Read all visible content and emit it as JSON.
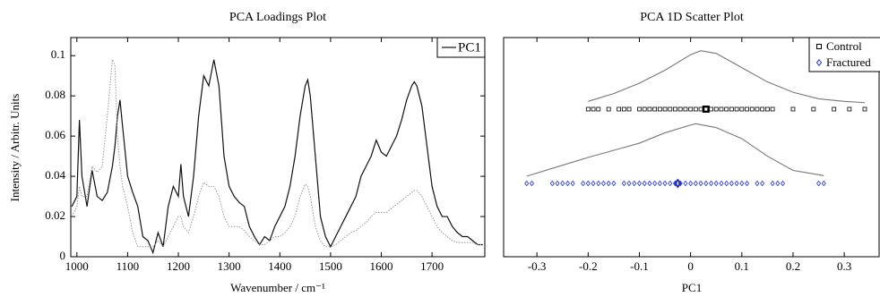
{
  "chart_data": [
    {
      "type": "line",
      "title": "PCA Loadings Plot",
      "xlabel": "Wavenumber / cm⁻¹",
      "ylabel": "Intensity / Arbitr. Units",
      "x": [
        990,
        1000,
        1005,
        1010,
        1020,
        1030,
        1040,
        1050,
        1060,
        1070,
        1075,
        1080,
        1085,
        1090,
        1100,
        1110,
        1120,
        1130,
        1140,
        1150,
        1160,
        1170,
        1180,
        1190,
        1200,
        1205,
        1210,
        1220,
        1230,
        1240,
        1250,
        1260,
        1270,
        1280,
        1290,
        1300,
        1310,
        1320,
        1330,
        1340,
        1350,
        1360,
        1370,
        1380,
        1390,
        1400,
        1410,
        1420,
        1430,
        1440,
        1450,
        1455,
        1460,
        1470,
        1480,
        1490,
        1500,
        1510,
        1520,
        1530,
        1540,
        1550,
        1560,
        1570,
        1580,
        1590,
        1600,
        1610,
        1620,
        1630,
        1640,
        1650,
        1660,
        1665,
        1670,
        1680,
        1690,
        1700,
        1710,
        1720,
        1730,
        1740,
        1750,
        1760,
        1770,
        1780,
        1790,
        1800
      ],
      "series": [
        {
          "name": "PC1",
          "color": "#111111",
          "dash": "solid",
          "values": [
            0.025,
            0.03,
            0.068,
            0.04,
            0.025,
            0.043,
            0.03,
            0.028,
            0.032,
            0.045,
            0.055,
            0.07,
            0.078,
            0.065,
            0.04,
            0.032,
            0.025,
            0.01,
            0.008,
            0.002,
            0.012,
            0.005,
            0.025,
            0.035,
            0.03,
            0.046,
            0.03,
            0.02,
            0.04,
            0.07,
            0.09,
            0.085,
            0.098,
            0.085,
            0.05,
            0.035,
            0.03,
            0.027,
            0.025,
            0.015,
            0.01,
            0.006,
            0.01,
            0.008,
            0.015,
            0.02,
            0.025,
            0.035,
            0.05,
            0.07,
            0.085,
            0.088,
            0.08,
            0.05,
            0.02,
            0.01,
            0.005,
            0.01,
            0.015,
            0.02,
            0.025,
            0.03,
            0.04,
            0.045,
            0.05,
            0.058,
            0.052,
            0.05,
            0.055,
            0.06,
            0.068,
            0.078,
            0.085,
            0.087,
            0.085,
            0.075,
            0.055,
            0.035,
            0.025,
            0.02,
            0.02,
            0.015,
            0.012,
            0.01,
            0.01,
            0.008,
            0.006,
            0.006
          ]
        },
        {
          "color": "#999999",
          "dash": "dotted",
          "values": [
            0.02,
            0.025,
            0.035,
            0.03,
            0.03,
            0.045,
            0.042,
            0.045,
            0.07,
            0.098,
            0.095,
            0.06,
            0.045,
            0.035,
            0.025,
            0.012,
            0.005,
            0.005,
            0.005,
            0.005,
            0.008,
            0.005,
            0.01,
            0.015,
            0.02,
            0.02,
            0.015,
            0.012,
            0.02,
            0.03,
            0.037,
            0.035,
            0.035,
            0.03,
            0.02,
            0.015,
            0.015,
            0.015,
            0.013,
            0.01,
            0.008,
            0.006,
            0.006,
            0.008,
            0.01,
            0.01,
            0.012,
            0.015,
            0.02,
            0.03,
            0.036,
            0.035,
            0.03,
            0.015,
            0.008,
            0.005,
            0.005,
            0.006,
            0.008,
            0.01,
            0.012,
            0.013,
            0.015,
            0.017,
            0.02,
            0.022,
            0.022,
            0.022,
            0.024,
            0.026,
            0.028,
            0.03,
            0.032,
            0.033,
            0.033,
            0.03,
            0.025,
            0.02,
            0.015,
            0.012,
            0.01,
            0.008,
            0.007,
            0.007,
            0.007,
            0.007,
            0.006,
            0.006
          ]
        }
      ],
      "xlim": [
        988,
        1804
      ],
      "xticks": [
        1000,
        1100,
        1200,
        1300,
        1400,
        1500,
        1600,
        1700
      ],
      "ylim": [
        0,
        0.109
      ],
      "yticks": [
        0,
        0.02,
        0.04,
        0.06,
        0.08,
        0.1
      ],
      "legend": "upper right"
    },
    {
      "type": "scatter",
      "title": "PCA 1D Scatter Plot",
      "xlabel": "PC1",
      "xlim": [
        -0.365,
        0.368
      ],
      "xticks": [
        -0.3,
        -0.2,
        -0.1,
        0,
        0.1,
        0.2,
        0.3
      ],
      "legend": "upper right",
      "series": [
        {
          "name": "Control",
          "color": "#000000",
          "marker": "square",
          "mean": 0.03,
          "x": [
            -0.2,
            -0.19,
            -0.18,
            -0.16,
            -0.14,
            -0.13,
            -0.12,
            -0.1,
            -0.09,
            -0.08,
            -0.07,
            -0.06,
            -0.05,
            -0.04,
            -0.03,
            -0.02,
            -0.01,
            0,
            0.01,
            0.02,
            0.03,
            0.04,
            0.05,
            0.06,
            0.07,
            0.08,
            0.09,
            0.1,
            0.11,
            0.12,
            0.13,
            0.14,
            0.15,
            0.16,
            0.2,
            0.24,
            0.28,
            0.31,
            0.34
          ],
          "density": {
            "x": [
              -0.2,
              -0.15,
              -0.1,
              -0.05,
              0,
              0.02,
              0.05,
              0.1,
              0.15,
              0.2,
              0.25,
              0.3,
              0.34
            ],
            "values": [
              0.6,
              1.2,
              2.0,
              3.0,
              4.2,
              4.5,
              4.3,
              3.2,
              2.1,
              1.3,
              0.8,
              0.6,
              0.5
            ]
          }
        },
        {
          "name": "Fractured",
          "color": "#1f2fd0",
          "marker": "diamond",
          "mean": -0.025,
          "x": [
            -0.32,
            -0.31,
            -0.27,
            -0.26,
            -0.25,
            -0.24,
            -0.23,
            -0.21,
            -0.2,
            -0.19,
            -0.18,
            -0.17,
            -0.16,
            -0.15,
            -0.13,
            -0.12,
            -0.11,
            -0.1,
            -0.09,
            -0.08,
            -0.07,
            -0.06,
            -0.05,
            -0.04,
            -0.03,
            -0.02,
            -0.01,
            0,
            0.01,
            0.02,
            0.03,
            0.04,
            0.05,
            0.06,
            0.07,
            0.08,
            0.09,
            0.1,
            0.11,
            0.13,
            0.14,
            0.16,
            0.17,
            0.18,
            0.25,
            0.26
          ],
          "density": {
            "x": [
              -0.32,
              -0.25,
              -0.2,
              -0.15,
              -0.1,
              -0.05,
              0,
              0.01,
              0.05,
              0.1,
              0.15,
              0.2,
              0.26
            ],
            "values": [
              0.55,
              1.4,
              2.0,
              2.55,
              3.1,
              3.9,
              4.5,
              4.6,
              4.3,
              3.45,
              2.1,
              1.0,
              0.6
            ]
          }
        }
      ]
    }
  ]
}
